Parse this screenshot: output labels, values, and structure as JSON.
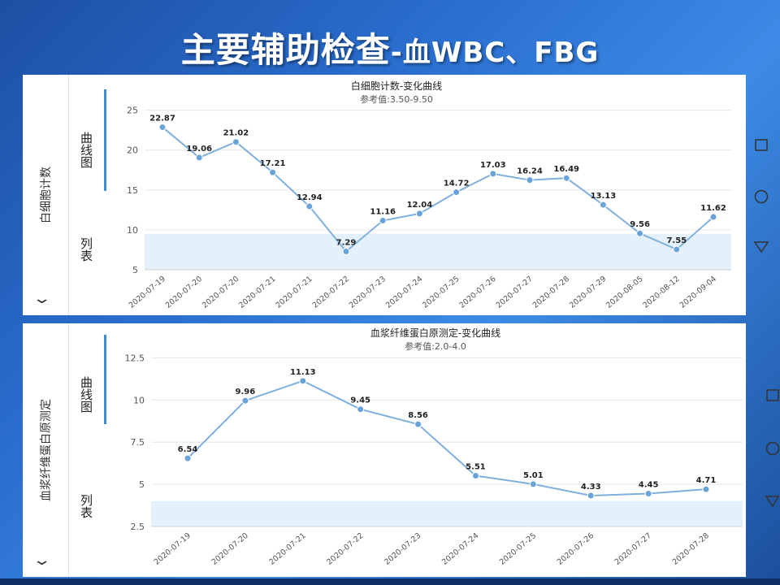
{
  "slide": {
    "title_main": "主要辅助检查",
    "title_sub": "-血WBC、FBG"
  },
  "charts_ui": [
    {
      "side_label": "白细胞计数",
      "tab_curve": "曲线图",
      "tab_list": "列表",
      "chevron": "⌄"
    },
    {
      "side_label": "血浆纤维蛋白原测定",
      "tab_curve": "曲线图",
      "tab_list": "列表",
      "chevron": "⌄"
    }
  ],
  "nav_icons": [
    "square-icon",
    "circle-icon",
    "triangle-down-icon"
  ],
  "colors": {
    "line": "#7fb0de",
    "point": "#6aa3d8",
    "band": "#e4f1fa",
    "grid": "#e6e6e6"
  },
  "chart_data": [
    {
      "type": "line",
      "title": "白细胞计数-变化曲线",
      "subtitle": "参考值:3.50-9.50",
      "categories": [
        "2020-07-19",
        "2020-07-20",
        "2020-07-20",
        "2020-07-21",
        "2020-07-21",
        "2020-07-22",
        "2020-07-23",
        "2020-07-24",
        "2020-07-25",
        "2020-07-26",
        "2020-07-27",
        "2020-07-28",
        "2020-07-29",
        "2020-08-05",
        "2020-08-12",
        "2020-09-04"
      ],
      "values": [
        22.87,
        19.06,
        21.02,
        17.21,
        12.94,
        7.29,
        11.16,
        12.04,
        14.72,
        17.03,
        16.24,
        16.49,
        13.13,
        9.56,
        7.55,
        11.62
      ],
      "labels": [
        "22.87",
        "19.06",
        "21.02",
        "17.21",
        "12.94",
        "7.29",
        "11.16",
        "12.04",
        "14.72",
        "17.03",
        "16.24",
        "16.49",
        "13.13",
        "9.56",
        "7.55",
        "11.62"
      ],
      "yticks": [
        5,
        10,
        15,
        20,
        25
      ],
      "ytick_labels": [
        "5",
        "10",
        "15",
        "20",
        "25"
      ],
      "ylim": [
        5,
        27
      ],
      "reference_range": [
        3.5,
        9.5
      ],
      "grid": true
    },
    {
      "type": "line",
      "title": "血浆纤维蛋白原测定-变化曲线",
      "subtitle": "参考值:2.0-4.0",
      "categories": [
        "2020-07-19",
        "2020-07-20",
        "2020-07-21",
        "2020-07-22",
        "2020-07-23",
        "2020-07-24",
        "2020-07-25",
        "2020-07-26",
        "2020-07-27",
        "2020-07-28"
      ],
      "values": [
        6.54,
        9.96,
        11.13,
        9.45,
        8.56,
        5.51,
        5.01,
        4.33,
        4.45,
        4.71
      ],
      "labels": [
        "6.54",
        "9.96",
        "11.13",
        "9.45",
        "8.56",
        "5.51",
        "5.01",
        "4.33",
        "4.45",
        "4.71"
      ],
      "yticks": [
        2.5,
        5,
        7.5,
        10,
        12.5
      ],
      "ytick_labels": [
        "2.5",
        "5",
        "7.5",
        "10",
        "12.5"
      ],
      "ylim": [
        2.5,
        13
      ],
      "reference_range": [
        2.0,
        4.0
      ],
      "grid": true
    }
  ]
}
